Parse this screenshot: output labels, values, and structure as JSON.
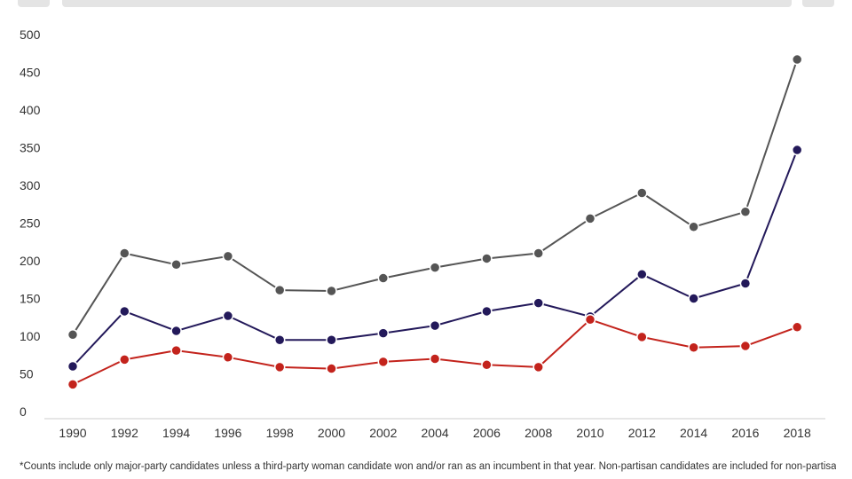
{
  "toolbar": {
    "left_button": "",
    "search_bar": "",
    "right_button": ""
  },
  "chart_data": {
    "type": "line",
    "title": "",
    "xlabel": "",
    "ylabel": "",
    "x": [
      "1990",
      "1992",
      "1994",
      "1996",
      "1998",
      "2000",
      "2002",
      "2004",
      "2006",
      "2008",
      "2010",
      "2012",
      "2014",
      "2016",
      "2018"
    ],
    "ylim": [
      0,
      500
    ],
    "yticks": [
      0,
      50,
      100,
      150,
      200,
      250,
      300,
      350,
      400,
      450,
      500
    ],
    "grid": false,
    "series": [
      {
        "color": "#555555",
        "values": [
          102,
          210,
          195,
          206,
          161,
          160,
          177,
          191,
          203,
          210,
          256,
          290,
          245,
          265,
          467
        ]
      },
      {
        "color": "#23195a",
        "values": [
          60,
          133,
          107,
          127,
          95,
          95,
          104,
          114,
          133,
          144,
          126,
          182,
          150,
          170,
          347
        ]
      },
      {
        "color": "#c3231c",
        "values": [
          36,
          69,
          81,
          72,
          59,
          57,
          66,
          70,
          62,
          59,
          122,
          99,
          85,
          87,
          112
        ]
      }
    ]
  },
  "footnote": "*Counts include only major-party candidates unless a third-party woman candidate won and/or ran as an incumbent in that year. Non-partisan candidates are included for non-partisan offices. Counts do not include candidates for non-voting positions in the U.S. House."
}
